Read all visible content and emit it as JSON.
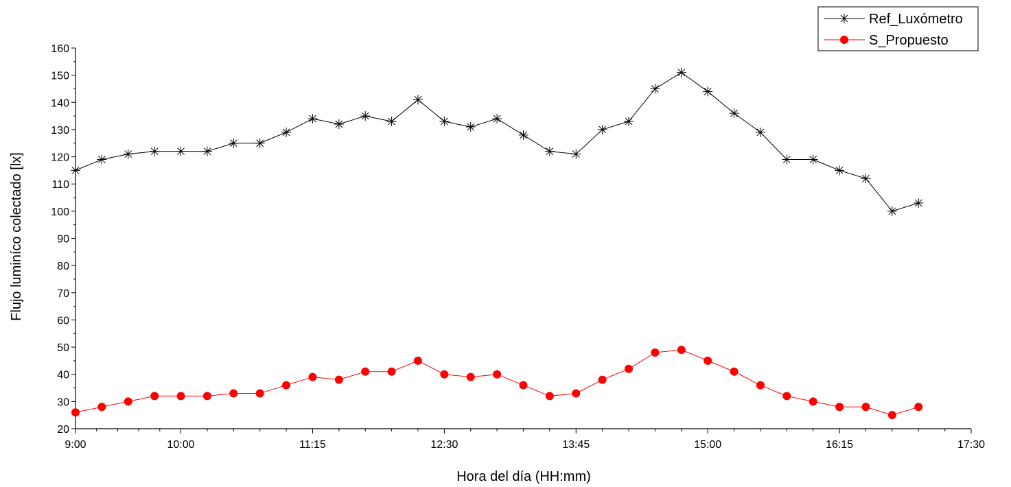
{
  "chart_data": {
    "type": "line",
    "xlabel": "Hora del día (HH:mm)",
    "ylabel": "Flujo luminíco colectado [lx]",
    "xlim": [
      "9:00",
      "17:30"
    ],
    "ylim": [
      20,
      160
    ],
    "x_ticks": [
      "9:00",
      "10:00",
      "11:15",
      "12:30",
      "13:45",
      "15:00",
      "16:15",
      "17:30"
    ],
    "y_ticks": [
      20,
      30,
      40,
      50,
      60,
      70,
      80,
      90,
      100,
      110,
      120,
      130,
      140,
      150,
      160
    ],
    "x": [
      "9:00",
      "9:15",
      "9:30",
      "9:45",
      "10:00",
      "10:15",
      "10:30",
      "10:45",
      "11:00",
      "11:15",
      "11:30",
      "11:45",
      "12:00",
      "12:15",
      "12:30",
      "12:45",
      "13:00",
      "13:15",
      "13:30",
      "13:45",
      "14:00",
      "14:15",
      "14:30",
      "14:45",
      "15:00",
      "15:15",
      "15:30",
      "15:45",
      "16:00",
      "16:15",
      "16:30",
      "16:45",
      "17:00"
    ],
    "series": [
      {
        "name": "Ref_Luxómetro",
        "color": "#000000",
        "marker": "asterisk",
        "values": [
          115,
          119,
          121,
          122,
          122,
          122,
          125,
          125,
          129,
          134,
          132,
          135,
          133,
          141,
          133,
          131,
          134,
          128,
          122,
          121,
          130,
          133,
          145,
          151,
          144,
          136,
          129,
          119,
          119,
          115,
          112,
          100,
          103
        ]
      },
      {
        "name": "S_Propuesto",
        "color": "#ff0000",
        "marker": "circle",
        "values": [
          26,
          28,
          30,
          32,
          32,
          32,
          33,
          33,
          36,
          39,
          38,
          41,
          41,
          45,
          40,
          39,
          40,
          36,
          32,
          33,
          38,
          42,
          48,
          49,
          45,
          41,
          36,
          32,
          30,
          28,
          28,
          25,
          28
        ]
      }
    ],
    "legend_position": "top-right",
    "grid": false
  }
}
